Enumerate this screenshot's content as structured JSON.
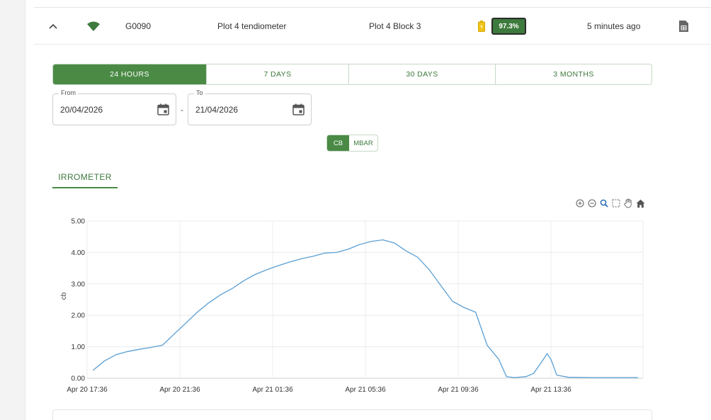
{
  "device": {
    "id": "G0090",
    "name": "Plot 4 tendiometer",
    "location": "Plot 4 Block 3",
    "battery": "97.3%",
    "last_seen": "5 minutes ago",
    "icons": [
      "chevron-up-icon",
      "wifi-icon",
      "battery-icon",
      "sim-card-icon"
    ]
  },
  "range_tabs": [
    "24 HOURS",
    "7 DAYS",
    "30 DAYS",
    "3 MONTHS"
  ],
  "active_range": "24 HOURS",
  "date_range": {
    "from_label": "From",
    "from_value": "20/04/2026",
    "separator": "-",
    "to_label": "To",
    "to_value": "21/04/2026"
  },
  "units": [
    "CB",
    "MBAR"
  ],
  "active_unit": "CB",
  "sensor_tab": "IRROMETER",
  "toolbar_icons": [
    "zoom-in-icon",
    "zoom-out-icon",
    "magnifier-icon",
    "selection-zoom-icon",
    "pan-hand-icon",
    "home-reset-icon"
  ],
  "colors": {
    "accent": "#4a8a45",
    "series": "#5a9fd4",
    "battery_fill": "#f0c419"
  },
  "chart_data": {
    "type": "line",
    "title": "",
    "xlabel": "",
    "ylabel": "cb",
    "ylim": [
      0,
      5
    ],
    "yticks": [
      "0.00",
      "1.00",
      "2.00",
      "3.00",
      "4.00",
      "5.00"
    ],
    "xticks": [
      "Apr 20 17:36",
      "Apr 20 21:36",
      "Apr 21 01:36",
      "Apr 21 05:36",
      "Apr 21 09:36",
      "Apr 21 13:36"
    ],
    "grid": true,
    "series": [
      {
        "x": [
          "2026-04-20 17:51",
          "2026-04-20 18:21",
          "2026-04-20 18:51",
          "2026-04-20 19:21",
          "2026-04-20 19:51",
          "2026-04-20 20:21",
          "2026-04-20 20:51",
          "2026-04-20 21:21",
          "2026-04-20 21:51",
          "2026-04-20 22:21",
          "2026-04-20 22:51",
          "2026-04-20 23:21",
          "2026-04-20 23:51",
          "2026-04-21 00:21",
          "2026-04-21 00:51",
          "2026-04-21 01:21",
          "2026-04-21 01:51",
          "2026-04-21 02:21",
          "2026-04-21 02:51",
          "2026-04-21 03:21",
          "2026-04-21 03:51",
          "2026-04-21 04:21",
          "2026-04-21 04:51",
          "2026-04-21 05:21",
          "2026-04-21 05:51",
          "2026-04-21 06:21",
          "2026-04-21 06:51",
          "2026-04-21 07:21",
          "2026-04-21 07:51",
          "2026-04-21 08:21",
          "2026-04-21 08:51",
          "2026-04-21 09:21",
          "2026-04-21 09:51",
          "2026-04-21 10:21",
          "2026-04-21 10:51",
          "2026-04-21 11:21",
          "2026-04-21 11:41",
          "2026-04-21 12:01",
          "2026-04-21 12:31",
          "2026-04-21 12:51",
          "2026-04-21 13:11",
          "2026-04-21 13:26",
          "2026-04-21 13:36",
          "2026-04-21 13:51",
          "2026-04-21 14:21",
          "2026-04-21 15:21",
          "2026-04-21 16:21",
          "2026-04-21 17:21"
        ],
        "values": [
          0.25,
          0.55,
          0.75,
          0.85,
          0.92,
          0.98,
          1.05,
          1.4,
          1.75,
          2.1,
          2.4,
          2.65,
          2.85,
          3.1,
          3.3,
          3.45,
          3.58,
          3.7,
          3.8,
          3.88,
          3.98,
          4.0,
          4.1,
          4.25,
          4.35,
          4.4,
          4.3,
          4.05,
          3.85,
          3.45,
          2.95,
          2.45,
          2.25,
          2.1,
          1.05,
          0.6,
          0.05,
          0.02,
          0.05,
          0.15,
          0.5,
          0.78,
          0.6,
          0.1,
          0.03,
          0.02,
          0.02,
          0.02
        ]
      }
    ]
  }
}
